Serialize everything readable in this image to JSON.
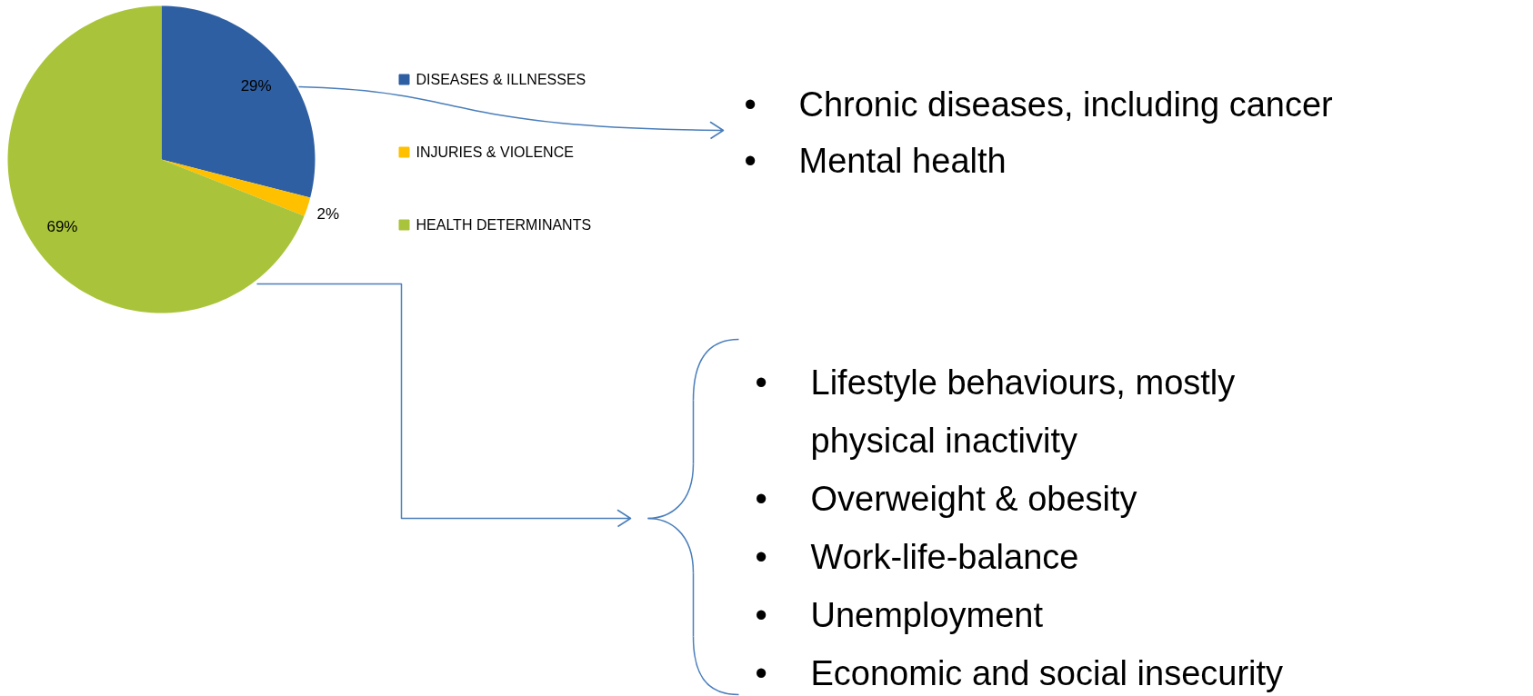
{
  "chart_data": {
    "type": "pie",
    "categories": [
      "DISEASES & ILLNESSES",
      "INJURIES & VIOLENCE",
      "HEALTH DETERMINANTS"
    ],
    "values": [
      29,
      2,
      69
    ],
    "colors": [
      "#2e5fa3",
      "#ffc000",
      "#a9c43a"
    ],
    "value_labels": [
      "29%",
      "2%",
      "69%"
    ],
    "legend": "right",
    "annotations": [
      "• Chronic diseases, including cancer",
      "• Mental health",
      "• Lifestyle behaviours, mostly physical inactivity",
      "• Overweight & obesity",
      "• Work-life-balance",
      "• Unemployment",
      "• Economic and social insecurity"
    ]
  }
}
